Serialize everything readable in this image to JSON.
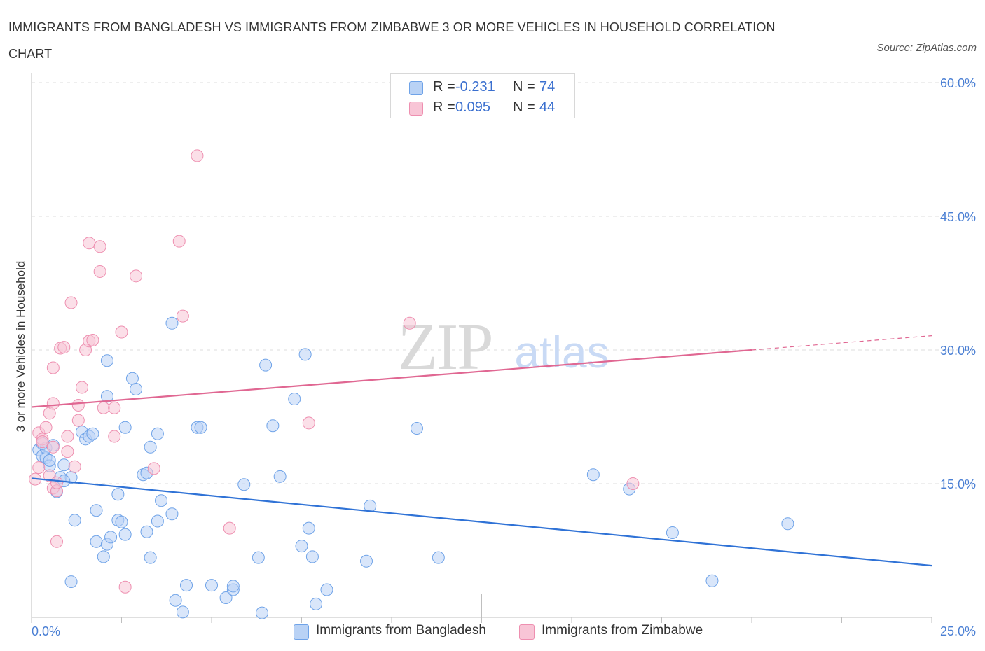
{
  "title": "IMMIGRANTS FROM BANGLADESH VS IMMIGRANTS FROM ZIMBABWE 3 OR MORE VEHICLES IN HOUSEHOLD CORRELATION CHART",
  "source": "Source: ZipAtlas.com",
  "watermark": {
    "zip": "ZIP",
    "atlas": "atlas"
  },
  "colors": {
    "blue": "#6fa3e8",
    "blue_fill": "#b9d2f5",
    "blue_line": "#2f72d6",
    "pink": "#ee8fb0",
    "pink_fill": "#f8c5d6",
    "pink_line": "#e06792",
    "tick": "#4a7fd4"
  },
  "legend": {
    "rows": [
      {
        "r_label": "R =",
        "r_value": "-0.231",
        "n_label": "N =",
        "n_value": "74"
      },
      {
        "r_label": "R =",
        "r_value": "0.095",
        "n_label": "N =",
        "n_value": "44"
      }
    ]
  },
  "bottom_legend": {
    "series1": "Immigrants from Bangladesh",
    "series2": "Immigrants from Zimbabwe"
  },
  "chart_data": {
    "type": "scatter",
    "title": "IMMIGRANTS FROM BANGLADESH VS IMMIGRANTS FROM ZIMBABWE 3 OR MORE VEHICLES IN HOUSEHOLD CORRELATION CHART",
    "xlabel": "",
    "ylabel": "3 or more Vehicles in Household",
    "xlim": [
      0,
      25
    ],
    "ylim": [
      0,
      60
    ],
    "x_tick_labels": [
      "0.0%",
      "25.0%"
    ],
    "y_ticks": [
      15,
      30,
      45,
      60
    ],
    "y_tick_labels": [
      "15.0%",
      "30.0%",
      "45.0%",
      "60.0%"
    ],
    "grid": true,
    "legend_position": "top-center",
    "series": [
      {
        "name": "Immigrants from Bangladesh",
        "color": "#6fa3e8",
        "trend": {
          "x": [
            0,
            25
          ],
          "y": [
            15.6,
            5.8
          ]
        },
        "points": [
          [
            0.2,
            18.8
          ],
          [
            0.3,
            18.1
          ],
          [
            0.4,
            17.9
          ],
          [
            0.5,
            17.0
          ],
          [
            0.5,
            17.6
          ],
          [
            0.4,
            19.0
          ],
          [
            0.6,
            19.3
          ],
          [
            0.3,
            19.5
          ],
          [
            0.9,
            17.1
          ],
          [
            0.8,
            15.7
          ],
          [
            1.1,
            15.7
          ],
          [
            0.9,
            15.3
          ],
          [
            0.7,
            14.1
          ],
          [
            1.4,
            20.8
          ],
          [
            1.5,
            20.0
          ],
          [
            1.6,
            20.3
          ],
          [
            1.7,
            20.6
          ],
          [
            1.2,
            10.9
          ],
          [
            1.8,
            12.0
          ],
          [
            1.8,
            8.5
          ],
          [
            2.0,
            6.8
          ],
          [
            2.1,
            8.2
          ],
          [
            2.2,
            9.0
          ],
          [
            2.4,
            13.8
          ],
          [
            2.4,
            10.9
          ],
          [
            2.5,
            10.7
          ],
          [
            2.6,
            9.3
          ],
          [
            2.1,
            24.8
          ],
          [
            2.1,
            28.8
          ],
          [
            2.8,
            26.8
          ],
          [
            2.9,
            25.6
          ],
          [
            2.6,
            21.3
          ],
          [
            3.2,
            9.6
          ],
          [
            3.3,
            6.7
          ],
          [
            3.5,
            10.8
          ],
          [
            3.6,
            13.1
          ],
          [
            3.1,
            16.0
          ],
          [
            3.2,
            16.2
          ],
          [
            3.3,
            19.1
          ],
          [
            3.5,
            20.6
          ],
          [
            3.9,
            11.6
          ],
          [
            3.9,
            33.0
          ],
          [
            4.3,
            3.6
          ],
          [
            4.6,
            21.3
          ],
          [
            4.7,
            21.3
          ],
          [
            5.0,
            3.6
          ],
          [
            4.0,
            1.9
          ],
          [
            4.2,
            0.6
          ],
          [
            5.4,
            2.2
          ],
          [
            5.6,
            3.1
          ],
          [
            5.6,
            3.5
          ],
          [
            5.9,
            14.9
          ],
          [
            6.3,
            6.7
          ],
          [
            6.4,
            0.5
          ],
          [
            6.5,
            28.3
          ],
          [
            6.7,
            21.5
          ],
          [
            6.9,
            15.8
          ],
          [
            7.3,
            24.5
          ],
          [
            7.5,
            8.0
          ],
          [
            7.6,
            29.5
          ],
          [
            7.7,
            10.0
          ],
          [
            7.8,
            6.8
          ],
          [
            7.9,
            1.5
          ],
          [
            8.2,
            3.1
          ],
          [
            9.3,
            6.3
          ],
          [
            9.4,
            12.5
          ],
          [
            10.7,
            21.2
          ],
          [
            11.3,
            6.7
          ],
          [
            15.6,
            16.0
          ],
          [
            16.6,
            14.4
          ],
          [
            17.8,
            9.5
          ],
          [
            18.9,
            4.1
          ],
          [
            21.0,
            10.5
          ],
          [
            1.1,
            4.0
          ]
        ]
      },
      {
        "name": "Immigrants from Zimbabwe",
        "color": "#ee8fb0",
        "trend": {
          "x": [
            0,
            20
          ],
          "y": [
            23.6,
            30.0
          ]
        },
        "trend_dashed": {
          "x": [
            20,
            25
          ],
          "y": [
            30.0,
            31.6
          ]
        },
        "points": [
          [
            0.1,
            15.5
          ],
          [
            0.2,
            16.8
          ],
          [
            0.2,
            20.7
          ],
          [
            0.3,
            20.0
          ],
          [
            0.4,
            21.3
          ],
          [
            0.3,
            19.7
          ],
          [
            0.5,
            22.9
          ],
          [
            0.6,
            19.1
          ],
          [
            0.5,
            15.9
          ],
          [
            0.6,
            14.5
          ],
          [
            0.7,
            14.2
          ],
          [
            0.7,
            15.1
          ],
          [
            0.7,
            8.5
          ],
          [
            0.6,
            28.0
          ],
          [
            0.6,
            24.0
          ],
          [
            0.8,
            30.2
          ],
          [
            0.9,
            30.3
          ],
          [
            1.0,
            20.3
          ],
          [
            1.0,
            18.6
          ],
          [
            1.1,
            35.3
          ],
          [
            1.2,
            16.9
          ],
          [
            1.3,
            23.8
          ],
          [
            1.3,
            22.1
          ],
          [
            1.4,
            25.8
          ],
          [
            1.5,
            30.0
          ],
          [
            1.6,
            31.0
          ],
          [
            1.6,
            42.0
          ],
          [
            1.7,
            31.1
          ],
          [
            1.9,
            38.8
          ],
          [
            1.9,
            41.6
          ],
          [
            2.0,
            23.5
          ],
          [
            2.3,
            23.5
          ],
          [
            2.3,
            20.3
          ],
          [
            2.5,
            32.0
          ],
          [
            2.6,
            3.4
          ],
          [
            2.9,
            38.3
          ],
          [
            3.4,
            16.7
          ],
          [
            4.1,
            42.2
          ],
          [
            4.2,
            33.8
          ],
          [
            4.6,
            51.8
          ],
          [
            5.5,
            10.0
          ],
          [
            7.7,
            21.8
          ],
          [
            10.5,
            33.0
          ],
          [
            16.7,
            15.0
          ]
        ]
      }
    ]
  }
}
